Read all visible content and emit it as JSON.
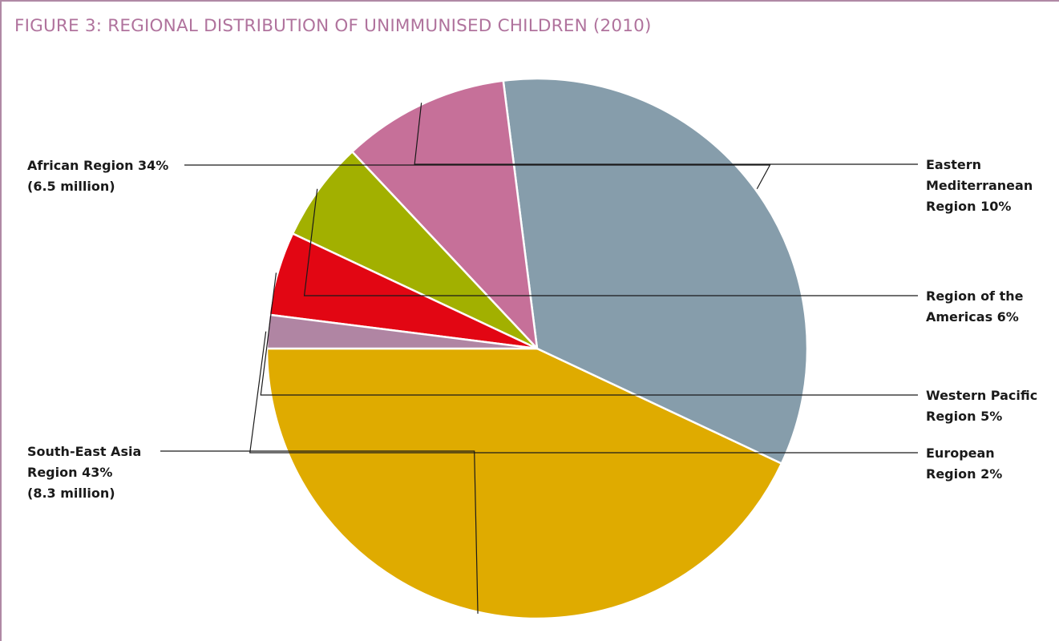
{
  "title": "FIGURE 3: REGIONAL DISTRIBUTION OF UNIMMUNISED CHILDREN (2010)",
  "chart_data": {
    "type": "pie",
    "slices": [
      {
        "key": "south-east-asia",
        "name": "South-East Asia Region",
        "value": 43,
        "color": "#dfab00",
        "label_lines": [
          "South-East Asia",
          "Region 43%",
          "(8.3 million)"
        ]
      },
      {
        "key": "african",
        "name": "African Region",
        "value": 34,
        "color": "#869dab",
        "label_lines": [
          "African Region 34%",
          "(6.5 million)"
        ]
      },
      {
        "key": "eastern-mediterranean",
        "name": "Eastern Mediterranean Region",
        "value": 10,
        "color": "#c67099",
        "label_lines": [
          "Eastern",
          "Mediterranean",
          "Region 10%"
        ]
      },
      {
        "key": "americas",
        "name": "Region of the Americas",
        "value": 6,
        "color": "#a2b000",
        "label_lines": [
          "Region of the",
          "Americas 6%"
        ]
      },
      {
        "key": "western-pacific",
        "name": "Western Pacific Region",
        "value": 5,
        "color": "#e20613",
        "label_lines": [
          "Western Pacific",
          "Region 5%"
        ]
      },
      {
        "key": "european",
        "name": "European Region",
        "value": 2,
        "color": "#b085a3",
        "label_lines": [
          "European",
          "Region 2%"
        ]
      }
    ]
  }
}
